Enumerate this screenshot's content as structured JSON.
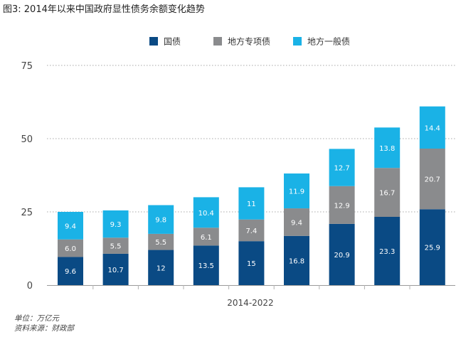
{
  "title": "图3: 2014年以来中国政府显性债务余额变化趋势",
  "footer": {
    "unit": "单位：万亿元",
    "source": "资料来源：财政部"
  },
  "chart_data": {
    "type": "bar",
    "stacked": true,
    "xlabel": "2014-2022",
    "ylabel": "",
    "ylim": [
      0,
      75
    ],
    "yticks": [
      0,
      25,
      50,
      75
    ],
    "grid": true,
    "legend_position": "top-center",
    "categories": [
      "",
      "",
      "",
      "",
      "",
      "",
      "",
      "",
      ""
    ],
    "series": [
      {
        "name": "国债",
        "color": "#0a4a84",
        "labels": [
          "9.6",
          "10.7",
          "12",
          "13.5",
          "15",
          "16.8",
          "20.9",
          "23.3",
          "25.9"
        ],
        "values": [
          9.6,
          10.7,
          12,
          13.5,
          15,
          16.8,
          20.9,
          23.3,
          25.9
        ]
      },
      {
        "name": "地方专项债",
        "color": "#8a8b8d",
        "labels": [
          "6.0",
          "5.5",
          "5.5",
          "6.1",
          "7.4",
          "9.4",
          "12.9",
          "16.7",
          "20.7"
        ],
        "values": [
          6.0,
          5.5,
          5.5,
          6.1,
          7.4,
          9.4,
          12.9,
          16.7,
          20.7
        ]
      },
      {
        "name": "地方一般债",
        "color": "#1ab2e6",
        "labels": [
          "9.4",
          "9.3",
          "9.8",
          "10.4",
          "11",
          "11.9",
          "12.7",
          "13.8",
          "14.4"
        ],
        "values": [
          9.4,
          9.3,
          9.8,
          10.4,
          11,
          11.9,
          12.7,
          13.8,
          14.4
        ]
      }
    ]
  }
}
